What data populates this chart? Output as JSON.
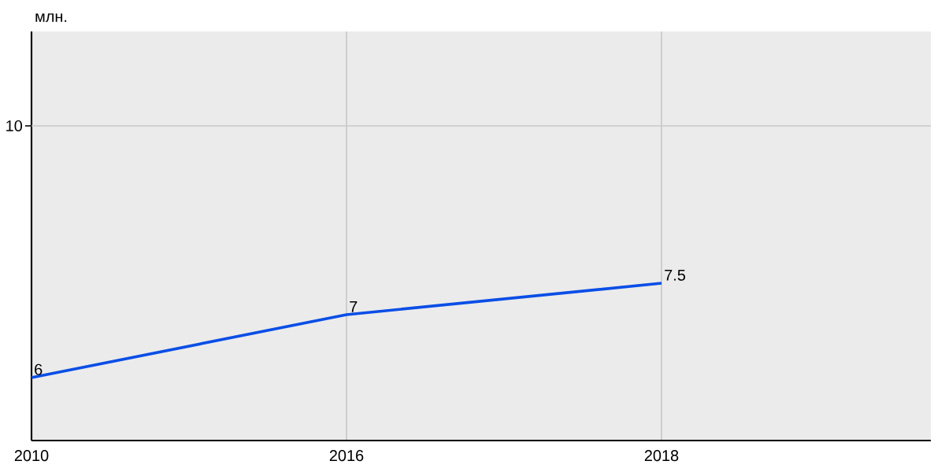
{
  "chart_data": {
    "type": "line",
    "ylabel": "млн.",
    "categories": [
      "2010",
      "2016",
      "2018"
    ],
    "series": [
      {
        "color": "#0a4ee6",
        "values": [
          6,
          7,
          7.5
        ]
      }
    ],
    "ylim": [
      5,
      11.5
    ],
    "ref_lines": [
      {
        "axis": "y",
        "value": 10,
        "label": "10",
        "color": "#c8c8c8"
      }
    ],
    "grid": "x",
    "data_labels": true,
    "marker": "none",
    "line_style": "solid"
  }
}
